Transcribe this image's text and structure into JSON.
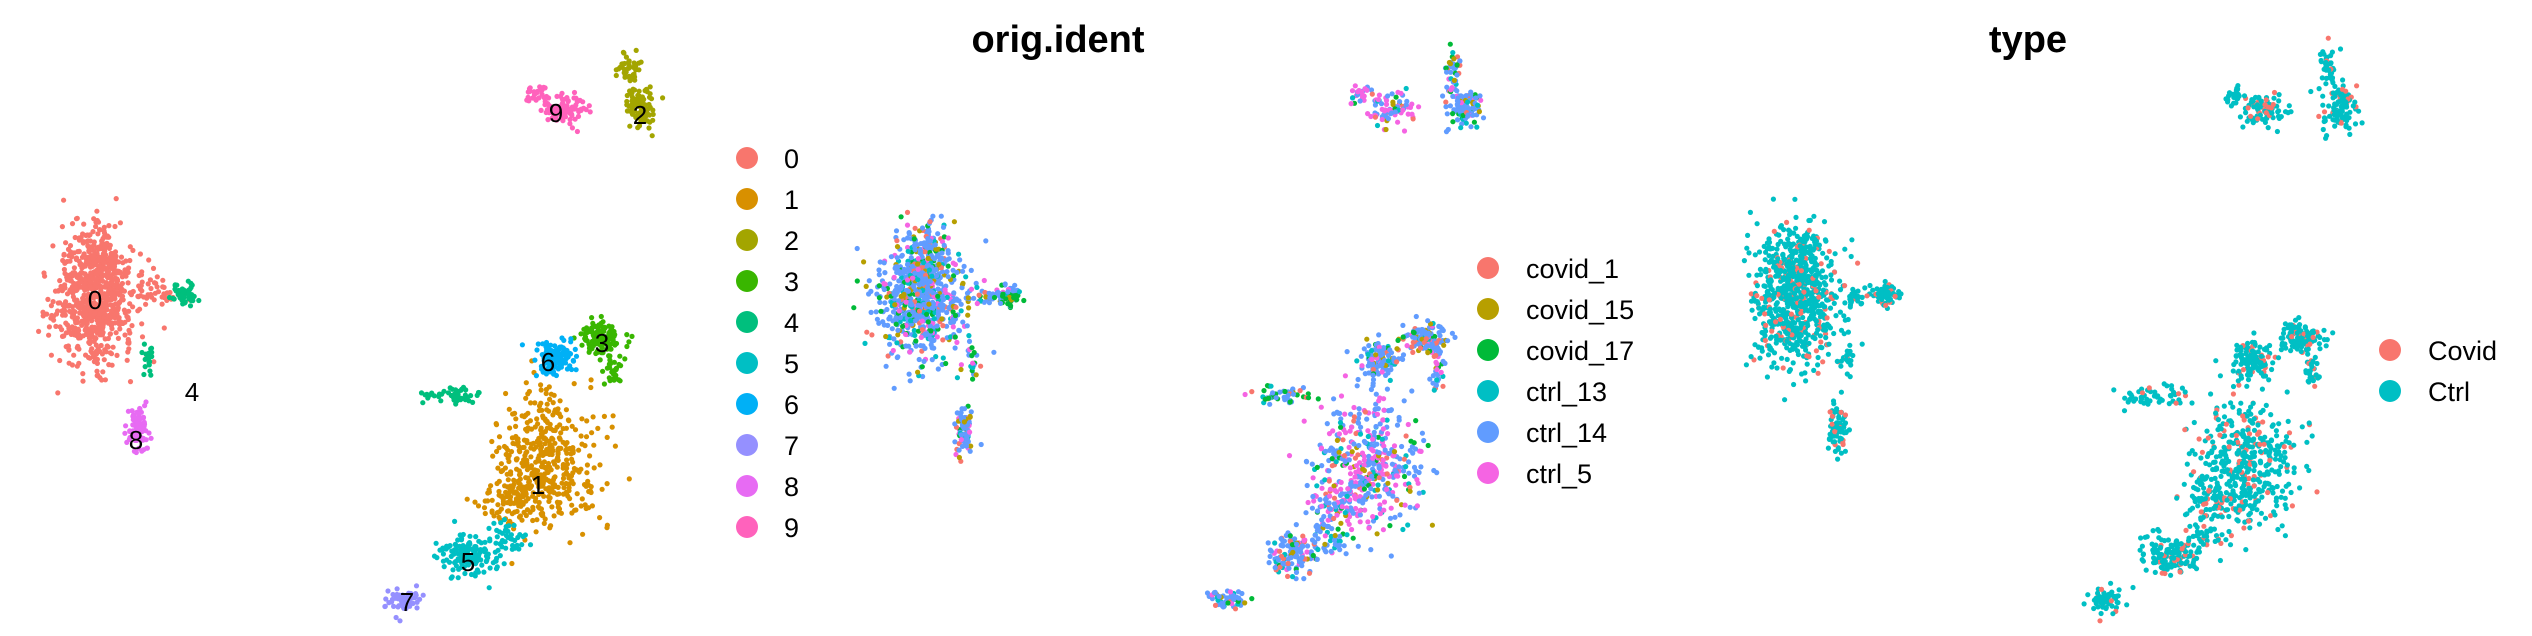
{
  "chart_data": [
    {
      "type": "scatter",
      "title": "",
      "xlabel": "",
      "ylabel": "",
      "point_size": "small",
      "color_by": "seurat_clusters",
      "cluster_labels_on_plot": [
        "0",
        "1",
        "2",
        "3",
        "4",
        "5",
        "6",
        "7",
        "8",
        "9"
      ],
      "series": [
        {
          "name": "0",
          "color": "#F8766D"
        },
        {
          "name": "1",
          "color": "#D89000"
        },
        {
          "name": "2",
          "color": "#A3A500"
        },
        {
          "name": "3",
          "color": "#39B600"
        },
        {
          "name": "4",
          "color": "#00BF7D"
        },
        {
          "name": "5",
          "color": "#00BFC4"
        },
        {
          "name": "6",
          "color": "#00B0F6"
        },
        {
          "name": "7",
          "color": "#9590FF"
        },
        {
          "name": "8",
          "color": "#E76BF3"
        },
        {
          "name": "9",
          "color": "#FF62BC"
        }
      ],
      "legend_position": "right"
    },
    {
      "type": "scatter",
      "title": "orig.ident",
      "xlabel": "",
      "ylabel": "",
      "series": [
        {
          "name": "covid_1",
          "color": "#F8766D"
        },
        {
          "name": "covid_15",
          "color": "#B79F00"
        },
        {
          "name": "covid_17",
          "color": "#00BA38"
        },
        {
          "name": "ctrl_13",
          "color": "#00BFC4"
        },
        {
          "name": "ctrl_14",
          "color": "#619CFF"
        },
        {
          "name": "ctrl_5",
          "color": "#F564E3"
        }
      ],
      "legend_position": "right"
    },
    {
      "type": "scatter",
      "title": "type",
      "xlabel": "",
      "ylabel": "",
      "series": [
        {
          "name": "Covid",
          "color": "#F8766D"
        },
        {
          "name": "Ctrl",
          "color": "#00BFC4"
        }
      ],
      "legend_position": "right"
    }
  ]
}
